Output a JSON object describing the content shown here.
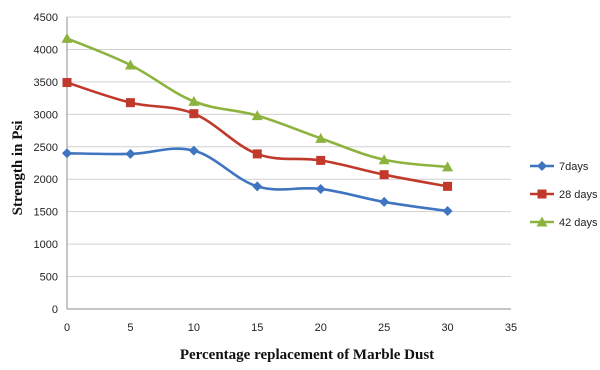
{
  "chart_data": {
    "type": "line",
    "xlabel": "Percentage replacement of Marble Dust",
    "ylabel": "Strength in Psi",
    "x": [
      0,
      5,
      10,
      15,
      20,
      25,
      30
    ],
    "xlim": [
      0,
      35
    ],
    "xticks": [
      0,
      5,
      10,
      15,
      20,
      25,
      30,
      35
    ],
    "ylim": [
      0,
      4500
    ],
    "yticks": [
      0,
      500,
      1000,
      1500,
      2000,
      2500,
      3000,
      3500,
      4000,
      4500
    ],
    "grid": "horizontal",
    "legend_position": "right",
    "series": [
      {
        "name": "7days",
        "color": "#3f75c0",
        "marker": "diamond",
        "values": [
          2400,
          2390,
          2440,
          1890,
          1850,
          1650,
          1510
        ]
      },
      {
        "name": "28 days",
        "color": "#c0392b",
        "marker": "square",
        "values": [
          3490,
          3180,
          3010,
          2390,
          2290,
          2070,
          1890
        ]
      },
      {
        "name": "42 days",
        "color": "#8db33f",
        "marker": "triangle",
        "values": [
          4170,
          3760,
          3200,
          2980,
          2630,
          2300,
          2190
        ]
      }
    ]
  }
}
